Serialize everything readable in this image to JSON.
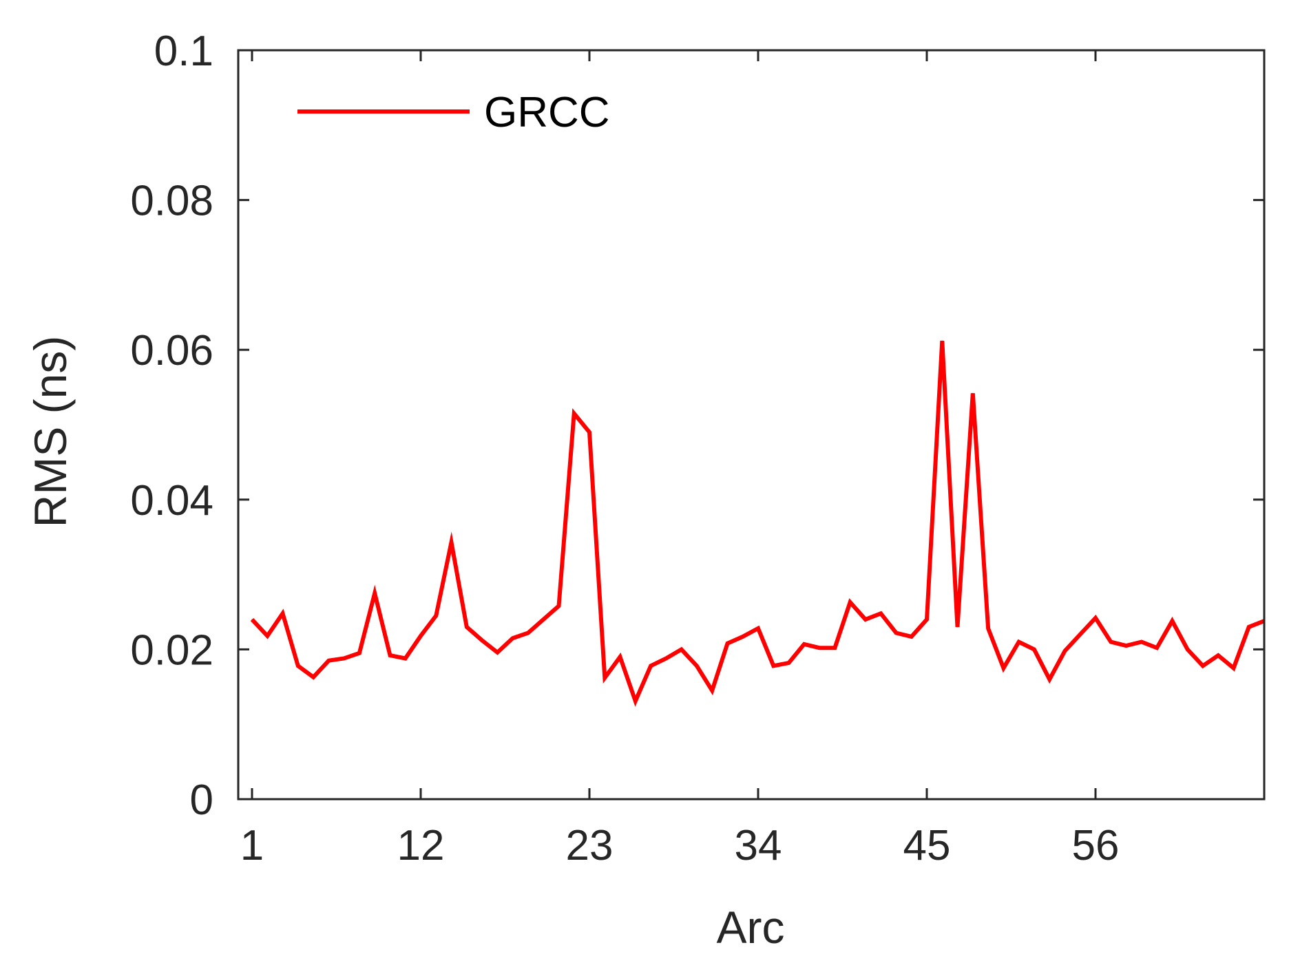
{
  "chart_data": {
    "type": "line",
    "title": "",
    "xlabel": "Arc",
    "ylabel": "RMS (ns)",
    "xlim": [
      0,
      67
    ],
    "ylim": [
      0,
      0.1
    ],
    "x_ticks": [
      1,
      12,
      23,
      34,
      45,
      56
    ],
    "x_tick_labels": [
      "1",
      "12",
      "23",
      "34",
      "45",
      "56"
    ],
    "y_ticks": [
      0,
      0.02,
      0.04,
      0.06,
      0.08,
      0.1
    ],
    "y_tick_labels": [
      "0",
      "0.02",
      "0.04",
      "0.06",
      "0.08",
      "0.1"
    ],
    "grid": false,
    "legend_position": "top-left",
    "series": [
      {
        "name": "GRCC",
        "color": "#ff0000",
        "x": [
          1,
          2,
          3,
          4,
          5,
          6,
          7,
          8,
          9,
          10,
          11,
          12,
          13,
          14,
          15,
          16,
          17,
          18,
          19,
          20,
          21,
          22,
          23,
          24,
          25,
          26,
          27,
          28,
          29,
          30,
          31,
          32,
          33,
          34,
          35,
          36,
          37,
          38,
          39,
          40,
          41,
          42,
          43,
          44,
          45,
          46,
          47,
          48,
          49,
          50,
          51,
          52,
          53,
          54,
          55,
          56,
          57,
          58,
          59,
          60,
          61,
          62,
          63,
          64,
          65,
          66,
          67
        ],
        "values": [
          0.024,
          0.0218,
          0.0248,
          0.0178,
          0.0163,
          0.0185,
          0.0188,
          0.0195,
          0.0275,
          0.0192,
          0.0188,
          0.0218,
          0.0245,
          0.0343,
          0.023,
          0.0212,
          0.0196,
          0.0215,
          0.0222,
          0.024,
          0.0258,
          0.0515,
          0.049,
          0.0162,
          0.019,
          0.0131,
          0.0178,
          0.0188,
          0.02,
          0.0178,
          0.0145,
          0.0208,
          0.0217,
          0.0228,
          0.0178,
          0.0182,
          0.0207,
          0.0202,
          0.0202,
          0.0263,
          0.024,
          0.0248,
          0.0222,
          0.0217,
          0.024,
          0.0612,
          0.023,
          0.0542,
          0.0228,
          0.0175,
          0.021,
          0.02,
          0.016,
          0.0198,
          0.022,
          0.0242,
          0.021,
          0.0205,
          0.021,
          0.0202,
          0.0238,
          0.02,
          0.0178,
          0.0192,
          0.0175,
          0.023,
          0.0238
        ]
      }
    ]
  }
}
